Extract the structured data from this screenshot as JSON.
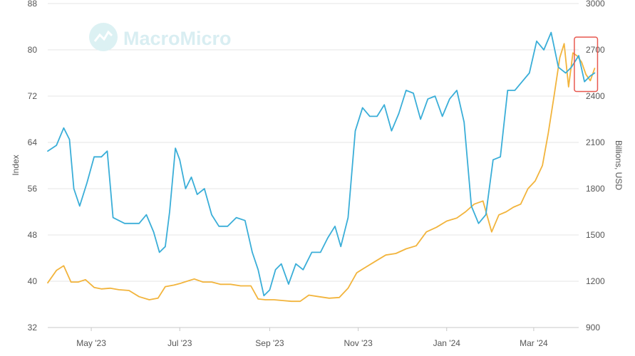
{
  "watermark": "MacroMicro",
  "colors": {
    "index_line": "#3aaed8",
    "billions_line": "#f2b43c",
    "highlight_box": "#e8584f",
    "grid": "#e6e6e6",
    "axis_text": "#555555",
    "watermark": "#d9eef2"
  },
  "chart_data": {
    "type": "line",
    "grid": true,
    "legend": "none",
    "x_ticks": [
      "May '23",
      "Jul '23",
      "Sep '23",
      "Nov '23",
      "Jan '24",
      "Mar '24"
    ],
    "x_tick_dates": [
      "2023-05-01",
      "2023-07-01",
      "2023-09-01",
      "2023-11-01",
      "2024-01-01",
      "2024-03-01"
    ],
    "x_range": [
      "2023-04-01",
      "2024-04-01"
    ],
    "y_left": {
      "label": "Index",
      "range": [
        32,
        88
      ],
      "ticks": [
        "32",
        "40",
        "48",
        "56",
        "64",
        "72",
        "80",
        "88"
      ]
    },
    "y_right": {
      "label": "Billions, USD",
      "range": [
        900,
        3000
      ],
      "ticks": [
        "900",
        "1200",
        "1500",
        "1800",
        "2100",
        "2400",
        "2700",
        "3000"
      ]
    },
    "highlight": {
      "x_start": "2024-03-29",
      "x_end": "2024-04-14",
      "y_left_start": 72.8,
      "y_left_end": 82.2
    },
    "series": [
      {
        "axis": "left",
        "color": "#3aaed8",
        "x": [
          "2023-04-01",
          "2023-04-07",
          "2023-04-12",
          "2023-04-16",
          "2023-04-19",
          "2023-04-23",
          "2023-04-28",
          "2023-05-03",
          "2023-05-08",
          "2023-05-12",
          "2023-05-16",
          "2023-05-20",
          "2023-05-24",
          "2023-05-29",
          "2023-06-03",
          "2023-06-08",
          "2023-06-13",
          "2023-06-17",
          "2023-06-21",
          "2023-06-24",
          "2023-06-28",
          "2023-07-01",
          "2023-07-05",
          "2023-07-09",
          "2023-07-13",
          "2023-07-18",
          "2023-07-23",
          "2023-07-28",
          "2023-08-03",
          "2023-08-09",
          "2023-08-15",
          "2023-08-20",
          "2023-08-24",
          "2023-08-28",
          "2023-09-01",
          "2023-09-05",
          "2023-09-09",
          "2023-09-14",
          "2023-09-19",
          "2023-09-24",
          "2023-09-30",
          "2023-10-06",
          "2023-10-11",
          "2023-10-16",
          "2023-10-20",
          "2023-10-25",
          "2023-10-30",
          "2023-11-04",
          "2023-11-09",
          "2023-11-14",
          "2023-11-19",
          "2023-11-24",
          "2023-11-29",
          "2023-12-04",
          "2023-12-09",
          "2023-12-14",
          "2023-12-19",
          "2023-12-24",
          "2023-12-29",
          "2024-01-03",
          "2024-01-08",
          "2024-01-13",
          "2024-01-18",
          "2024-01-23",
          "2024-01-28",
          "2024-02-02",
          "2024-02-07",
          "2024-02-12",
          "2024-02-17",
          "2024-02-22",
          "2024-02-27",
          "2024-03-03",
          "2024-03-08",
          "2024-03-13",
          "2024-03-18",
          "2024-03-23",
          "2024-03-27",
          "2024-04-01",
          "2024-04-05",
          "2024-04-09",
          "2024-04-12"
        ],
        "y": [
          62.5,
          63.5,
          66.5,
          64.5,
          56,
          53,
          57,
          61.5,
          61.5,
          62.5,
          51,
          50.5,
          50,
          50,
          50,
          51.5,
          48.5,
          45,
          46,
          52,
          63,
          61,
          56,
          58,
          55,
          56,
          51.5,
          49.5,
          49.5,
          51,
          50.5,
          45,
          42,
          37.5,
          38.5,
          42,
          43,
          39.5,
          43,
          42,
          45,
          45,
          47.5,
          49.5,
          46,
          51,
          66,
          70,
          68.5,
          68.5,
          70.5,
          66,
          69,
          73,
          72.5,
          68,
          71.5,
          72,
          68.5,
          71.5,
          73,
          67.5,
          53,
          50,
          51.5,
          61,
          61.5,
          73,
          73,
          74.5,
          76,
          81.5,
          80,
          83,
          77,
          76,
          77,
          79,
          74.5,
          75.5,
          76
        ]
      },
      {
        "axis": "right",
        "color": "#f2b43c",
        "x": [
          "2023-04-01",
          "2023-04-07",
          "2023-04-12",
          "2023-04-17",
          "2023-04-22",
          "2023-04-27",
          "2023-05-03",
          "2023-05-08",
          "2023-05-14",
          "2023-05-20",
          "2023-05-27",
          "2023-06-03",
          "2023-06-10",
          "2023-06-16",
          "2023-06-21",
          "2023-06-27",
          "2023-07-01",
          "2023-07-06",
          "2023-07-11",
          "2023-07-17",
          "2023-07-23",
          "2023-07-29",
          "2023-08-05",
          "2023-08-12",
          "2023-08-19",
          "2023-08-24",
          "2023-08-29",
          "2023-09-04",
          "2023-09-10",
          "2023-09-16",
          "2023-09-22",
          "2023-09-28",
          "2023-10-05",
          "2023-10-12",
          "2023-10-19",
          "2023-10-25",
          "2023-10-31",
          "2023-11-06",
          "2023-11-13",
          "2023-11-20",
          "2023-11-27",
          "2023-12-04",
          "2023-12-11",
          "2023-12-18",
          "2023-12-25",
          "2024-01-01",
          "2024-01-08",
          "2024-01-14",
          "2024-01-20",
          "2024-01-26",
          "2024-02-01",
          "2024-02-06",
          "2024-02-11",
          "2024-02-16",
          "2024-02-21",
          "2024-02-26",
          "2024-03-02",
          "2024-03-07",
          "2024-03-11",
          "2024-03-15",
          "2024-03-19",
          "2024-03-22",
          "2024-03-25",
          "2024-03-28",
          "2024-03-31",
          "2024-04-03",
          "2024-04-06",
          "2024-04-09",
          "2024-04-12"
        ],
        "y": [
          1190,
          1270,
          1300,
          1195,
          1195,
          1210,
          1160,
          1150,
          1155,
          1145,
          1140,
          1100,
          1080,
          1090,
          1165,
          1175,
          1185,
          1200,
          1215,
          1195,
          1195,
          1180,
          1180,
          1170,
          1170,
          1085,
          1080,
          1080,
          1075,
          1070,
          1070,
          1110,
          1100,
          1090,
          1095,
          1155,
          1255,
          1290,
          1330,
          1370,
          1380,
          1410,
          1430,
          1520,
          1550,
          1590,
          1610,
          1650,
          1700,
          1720,
          1520,
          1630,
          1650,
          1680,
          1700,
          1800,
          1850,
          1950,
          2160,
          2400,
          2650,
          2740,
          2460,
          2680,
          2660,
          2620,
          2540,
          2500,
          2580
        ]
      }
    ]
  }
}
